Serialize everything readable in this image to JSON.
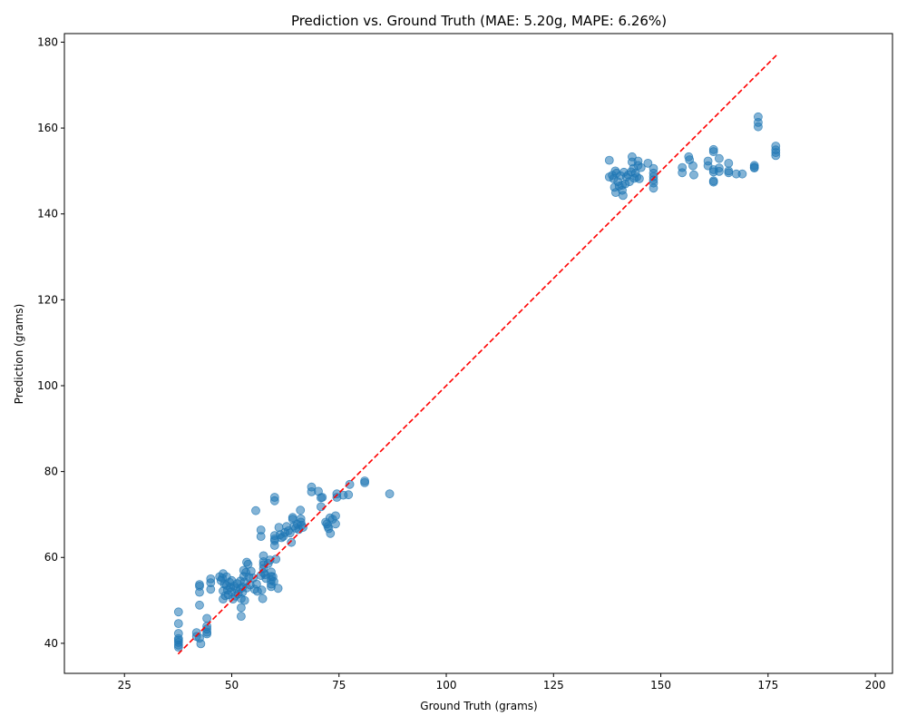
{
  "chart_data": {
    "type": "scatter",
    "title": "Prediction vs. Ground Truth (MAE: 5.20g, MAPE: 6.26%)",
    "xlabel": "Ground Truth (grams)",
    "ylabel": "Prediction (grams)",
    "xlim": [
      11,
      204
    ],
    "ylim": [
      33,
      182
    ],
    "xticks": [
      25,
      50,
      75,
      100,
      125,
      150,
      175,
      200
    ],
    "yticks": [
      40,
      60,
      80,
      100,
      120,
      140,
      160,
      180
    ],
    "grid": false,
    "legend": "none",
    "colors": {
      "points": "#1f77b4",
      "reference_line": "#ff0000"
    },
    "reference_line": {
      "x": [
        37.5,
        177
      ],
      "y": [
        37.5,
        177
      ],
      "style": "dashed"
    },
    "series": [
      {
        "points": [
          [
            37.6,
            47.3
          ],
          [
            37.6,
            44.6
          ],
          [
            37.6,
            42.3
          ],
          [
            37.6,
            41.1
          ],
          [
            37.6,
            40.7
          ],
          [
            37.6,
            40.2
          ],
          [
            37.6,
            39.6
          ],
          [
            37.6,
            39.1
          ],
          [
            41.8,
            42.5
          ],
          [
            41.8,
            41.6
          ],
          [
            42.5,
            41.2
          ],
          [
            42.8,
            39.9
          ],
          [
            44.2,
            45.8
          ],
          [
            44.2,
            44.0
          ],
          [
            44.2,
            43.3
          ],
          [
            44.2,
            42.6
          ],
          [
            44.2,
            42.2
          ],
          [
            42.5,
            53.7
          ],
          [
            42.5,
            53.3
          ],
          [
            42.5,
            51.9
          ],
          [
            42.5,
            48.9
          ],
          [
            45.1,
            55.0
          ],
          [
            45.1,
            54.1
          ],
          [
            45.1,
            52.6
          ],
          [
            47.2,
            55.5
          ],
          [
            47.5,
            54.6
          ],
          [
            47.8,
            55.2
          ],
          [
            48.0,
            56.2
          ],
          [
            48.0,
            52.2
          ],
          [
            48.0,
            50.3
          ],
          [
            48.3,
            53.8
          ],
          [
            48.5,
            51.1
          ],
          [
            48.8,
            55.5
          ],
          [
            48.8,
            53.5
          ],
          [
            49.0,
            52.4
          ],
          [
            49.2,
            51.3
          ],
          [
            49.5,
            54.2
          ],
          [
            49.7,
            53.0
          ],
          [
            50.0,
            54.6
          ],
          [
            50.0,
            52.0
          ],
          [
            50.3,
            50.3
          ],
          [
            50.5,
            53.3
          ],
          [
            50.8,
            51.0
          ],
          [
            51.0,
            52.8
          ],
          [
            51.3,
            53.9
          ],
          [
            51.5,
            51.5
          ],
          [
            52.0,
            54.5
          ],
          [
            52.0,
            52.7
          ],
          [
            52.2,
            50.4
          ],
          [
            52.2,
            48.3
          ],
          [
            52.2,
            46.3
          ],
          [
            52.5,
            53.1
          ],
          [
            52.5,
            51.9
          ],
          [
            52.8,
            57.0
          ],
          [
            52.8,
            55.6
          ],
          [
            53.0,
            54.3
          ],
          [
            53.0,
            50.0
          ],
          [
            53.3,
            56.5
          ],
          [
            53.5,
            58.9
          ],
          [
            53.5,
            52.9
          ],
          [
            53.8,
            58.4
          ],
          [
            54.0,
            55.4
          ],
          [
            54.3,
            53.6
          ],
          [
            54.5,
            56.8
          ],
          [
            55.0,
            55.2
          ],
          [
            55.3,
            52.6
          ],
          [
            55.6,
            70.9
          ],
          [
            55.8,
            53.8
          ],
          [
            56.0,
            52.1
          ],
          [
            56.8,
            66.4
          ],
          [
            56.8,
            64.9
          ],
          [
            56.8,
            55.8
          ],
          [
            57.0,
            52.4
          ],
          [
            57.2,
            50.4
          ],
          [
            57.4,
            60.4
          ],
          [
            57.4,
            59.0
          ],
          [
            57.4,
            58.3
          ],
          [
            57.4,
            57.4
          ],
          [
            57.4,
            56.4
          ],
          [
            57.8,
            56.0
          ],
          [
            58.0,
            55.1
          ],
          [
            58.5,
            58.6
          ],
          [
            58.9,
            59.4
          ],
          [
            59.2,
            56.6
          ],
          [
            59.2,
            55.6
          ],
          [
            59.2,
            54.7
          ],
          [
            59.2,
            53.8
          ],
          [
            59.2,
            53.2
          ],
          [
            59.6,
            55.5
          ],
          [
            59.8,
            54.4
          ],
          [
            60.0,
            74.0
          ],
          [
            60.0,
            73.2
          ],
          [
            60.0,
            65.1
          ],
          [
            60.0,
            64.3
          ],
          [
            60.0,
            63.9
          ],
          [
            60.0,
            62.8
          ],
          [
            60.3,
            59.6
          ],
          [
            60.8,
            52.8
          ],
          [
            61.0,
            67.0
          ],
          [
            61.3,
            65.3
          ],
          [
            61.6,
            64.6
          ],
          [
            62.0,
            64.9
          ],
          [
            62.4,
            65.8
          ],
          [
            62.8,
            67.2
          ],
          [
            63.2,
            66.2
          ],
          [
            63.6,
            65.7
          ],
          [
            63.9,
            63.5
          ],
          [
            64.2,
            69.3
          ],
          [
            64.2,
            68.9
          ],
          [
            64.5,
            67.3
          ],
          [
            64.9,
            66.8
          ],
          [
            65.3,
            67.7
          ],
          [
            65.6,
            66.5
          ],
          [
            66.0,
            71.0
          ],
          [
            66.1,
            69.0
          ],
          [
            66.1,
            68.2
          ],
          [
            66.3,
            67.5
          ],
          [
            66.6,
            67.0
          ],
          [
            68.6,
            76.4
          ],
          [
            68.6,
            75.3
          ],
          [
            70.2,
            75.4
          ],
          [
            70.8,
            73.9
          ],
          [
            70.8,
            71.8
          ],
          [
            71.1,
            74.0
          ],
          [
            71.9,
            68.2
          ],
          [
            72.2,
            67.8
          ],
          [
            72.4,
            67.2
          ],
          [
            72.6,
            66.7
          ],
          [
            72.9,
            69.2
          ],
          [
            73.0,
            65.6
          ],
          [
            73.5,
            68.9
          ],
          [
            74.2,
            69.7
          ],
          [
            74.2,
            67.8
          ],
          [
            74.5,
            74.8
          ],
          [
            74.5,
            74.0
          ],
          [
            76.0,
            74.5
          ],
          [
            77.2,
            74.6
          ],
          [
            77.5,
            77.0
          ],
          [
            81.0,
            77.8
          ],
          [
            81.0,
            77.4
          ],
          [
            86.8,
            74.8
          ],
          [
            138.0,
            152.5
          ],
          [
            138.0,
            148.6
          ],
          [
            138.7,
            149.0
          ],
          [
            139.0,
            148.2
          ],
          [
            139.2,
            146.2
          ],
          [
            139.4,
            150.0
          ],
          [
            139.5,
            145.0
          ],
          [
            139.7,
            149.5
          ],
          [
            140.0,
            147.5
          ],
          [
            140.3,
            146.5
          ],
          [
            140.6,
            148.9
          ],
          [
            141.0,
            146.7
          ],
          [
            141.0,
            145.5
          ],
          [
            141.2,
            144.3
          ],
          [
            141.4,
            149.7
          ],
          [
            141.7,
            147.0
          ],
          [
            142.0,
            148.6
          ],
          [
            142.4,
            149.1
          ],
          [
            142.7,
            147.5
          ],
          [
            143.1,
            149.8
          ],
          [
            143.3,
            153.3
          ],
          [
            143.3,
            152.1
          ],
          [
            143.6,
            150.6
          ],
          [
            143.8,
            148.3
          ],
          [
            144.1,
            149.5
          ],
          [
            144.4,
            148.6
          ],
          [
            144.7,
            152.3
          ],
          [
            144.7,
            151.3
          ],
          [
            145.0,
            148.2
          ],
          [
            145.4,
            150.8
          ],
          [
            147.0,
            151.8
          ],
          [
            148.3,
            150.6
          ],
          [
            148.3,
            149.5
          ],
          [
            148.3,
            148.7
          ],
          [
            148.3,
            147.9
          ],
          [
            148.3,
            147.2
          ],
          [
            148.3,
            146.0
          ],
          [
            155.0,
            150.8
          ],
          [
            155.0,
            149.6
          ],
          [
            156.5,
            153.3
          ],
          [
            156.7,
            152.6
          ],
          [
            157.5,
            151.2
          ],
          [
            157.7,
            149.1
          ],
          [
            161.0,
            152.3
          ],
          [
            161.0,
            151.2
          ],
          [
            162.3,
            155.0
          ],
          [
            162.3,
            154.5
          ],
          [
            162.3,
            150.3
          ],
          [
            162.3,
            149.8
          ],
          [
            162.3,
            147.7
          ],
          [
            162.3,
            147.4
          ],
          [
            163.6,
            152.9
          ],
          [
            163.6,
            150.7
          ],
          [
            163.6,
            149.9
          ],
          [
            165.8,
            151.8
          ],
          [
            165.8,
            150.0
          ],
          [
            165.8,
            149.6
          ],
          [
            167.6,
            149.3
          ],
          [
            169.0,
            149.3
          ],
          [
            171.8,
            151.3
          ],
          [
            171.8,
            150.9
          ],
          [
            171.8,
            150.7
          ],
          [
            172.7,
            162.6
          ],
          [
            172.7,
            161.3
          ],
          [
            172.7,
            160.3
          ],
          [
            176.8,
            155.8
          ],
          [
            176.8,
            154.9
          ],
          [
            176.8,
            154.3
          ],
          [
            176.8,
            153.6
          ]
        ]
      }
    ]
  }
}
